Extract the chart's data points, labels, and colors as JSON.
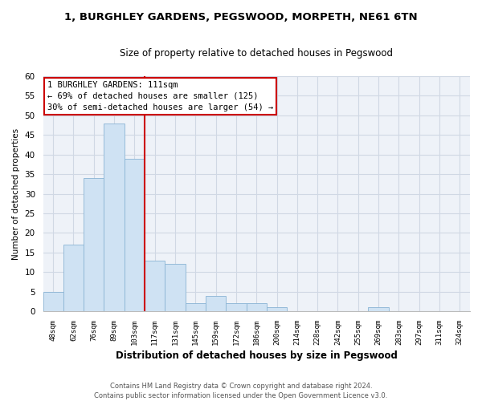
{
  "title": "1, BURGHLEY GARDENS, PEGSWOOD, MORPETH, NE61 6TN",
  "subtitle": "Size of property relative to detached houses in Pegswood",
  "xlabel": "Distribution of detached houses by size in Pegswood",
  "ylabel": "Number of detached properties",
  "bar_color": "#cfe2f3",
  "bar_edge_color": "#8ab4d4",
  "bin_labels": [
    "48sqm",
    "62sqm",
    "76sqm",
    "89sqm",
    "103sqm",
    "117sqm",
    "131sqm",
    "145sqm",
    "159sqm",
    "172sqm",
    "186sqm",
    "200sqm",
    "214sqm",
    "228sqm",
    "242sqm",
    "255sqm",
    "269sqm",
    "283sqm",
    "297sqm",
    "311sqm",
    "324sqm"
  ],
  "bar_values": [
    5,
    17,
    34,
    48,
    39,
    13,
    12,
    2,
    4,
    2,
    2,
    1,
    0,
    0,
    0,
    0,
    1,
    0,
    0,
    0,
    0
  ],
  "ylim": [
    0,
    60
  ],
  "yticks": [
    0,
    5,
    10,
    15,
    20,
    25,
    30,
    35,
    40,
    45,
    50,
    55,
    60
  ],
  "annotation_title": "1 BURGHLEY GARDENS: 111sqm",
  "annotation_line1": "← 69% of detached houses are smaller (125)",
  "annotation_line2": "30% of semi-detached houses are larger (54) →",
  "vline_color": "#cc0000",
  "grid_color": "#d0d8e4",
  "background_color": "#eef2f8",
  "title_fontsize": 9.5,
  "subtitle_fontsize": 8.5,
  "footer1": "Contains HM Land Registry data © Crown copyright and database right 2024.",
  "footer2": "Contains public sector information licensed under the Open Government Licence v3.0."
}
